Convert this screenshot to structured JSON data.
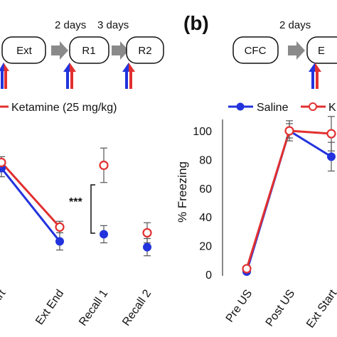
{
  "panel_b_label": "(b)",
  "schematic_left": {
    "stage_boxes": [
      "Ext",
      "R1",
      "R2"
    ],
    "intervals": [
      "2 days",
      "3 days"
    ]
  },
  "schematic_right": {
    "stage_boxes": [
      "CFC",
      "E"
    ],
    "intervals": [
      "2 days"
    ]
  },
  "colors": {
    "saline": "#2233dd",
    "ketamine": "#e23030",
    "grey": "#8a8a8a"
  },
  "legend_left": {
    "ketamine_label": "Ketamine (25 mg/kg)"
  },
  "legend_right": {
    "saline_label": "Saline",
    "ketamine_label": "K"
  },
  "chart_data": [
    {
      "type": "line",
      "panel": "left",
      "categories": [
        "Start",
        "Ext End",
        "Recall 1",
        "Recall 2"
      ],
      "series": [
        {
          "name": "Saline",
          "values": [
            74,
            23,
            28,
            19
          ],
          "error": [
            6,
            6,
            6,
            6
          ],
          "connected": [
            true,
            true,
            false,
            false
          ]
        },
        {
          "name": "Ketamine (25 mg/kg)",
          "values": [
            78,
            33,
            76,
            29
          ],
          "error": [
            4,
            4,
            12,
            7
          ],
          "connected": [
            true,
            true,
            false,
            false
          ]
        }
      ],
      "annotation": "***",
      "ylim": [
        0,
        110
      ]
    },
    {
      "type": "line",
      "panel": "b",
      "categories": [
        "Pre US",
        "Post US",
        "Ext Start"
      ],
      "ylabel": "% Freezing",
      "yticks": [
        0,
        20,
        40,
        60,
        80,
        100
      ],
      "ylim": [
        0,
        110
      ],
      "series": [
        {
          "name": "Saline",
          "values": [
            2,
            100,
            82
          ],
          "error": [
            1,
            5,
            10
          ]
        },
        {
          "name": "K",
          "values": [
            4,
            100,
            98
          ],
          "error": [
            1,
            7,
            12
          ]
        }
      ]
    }
  ]
}
